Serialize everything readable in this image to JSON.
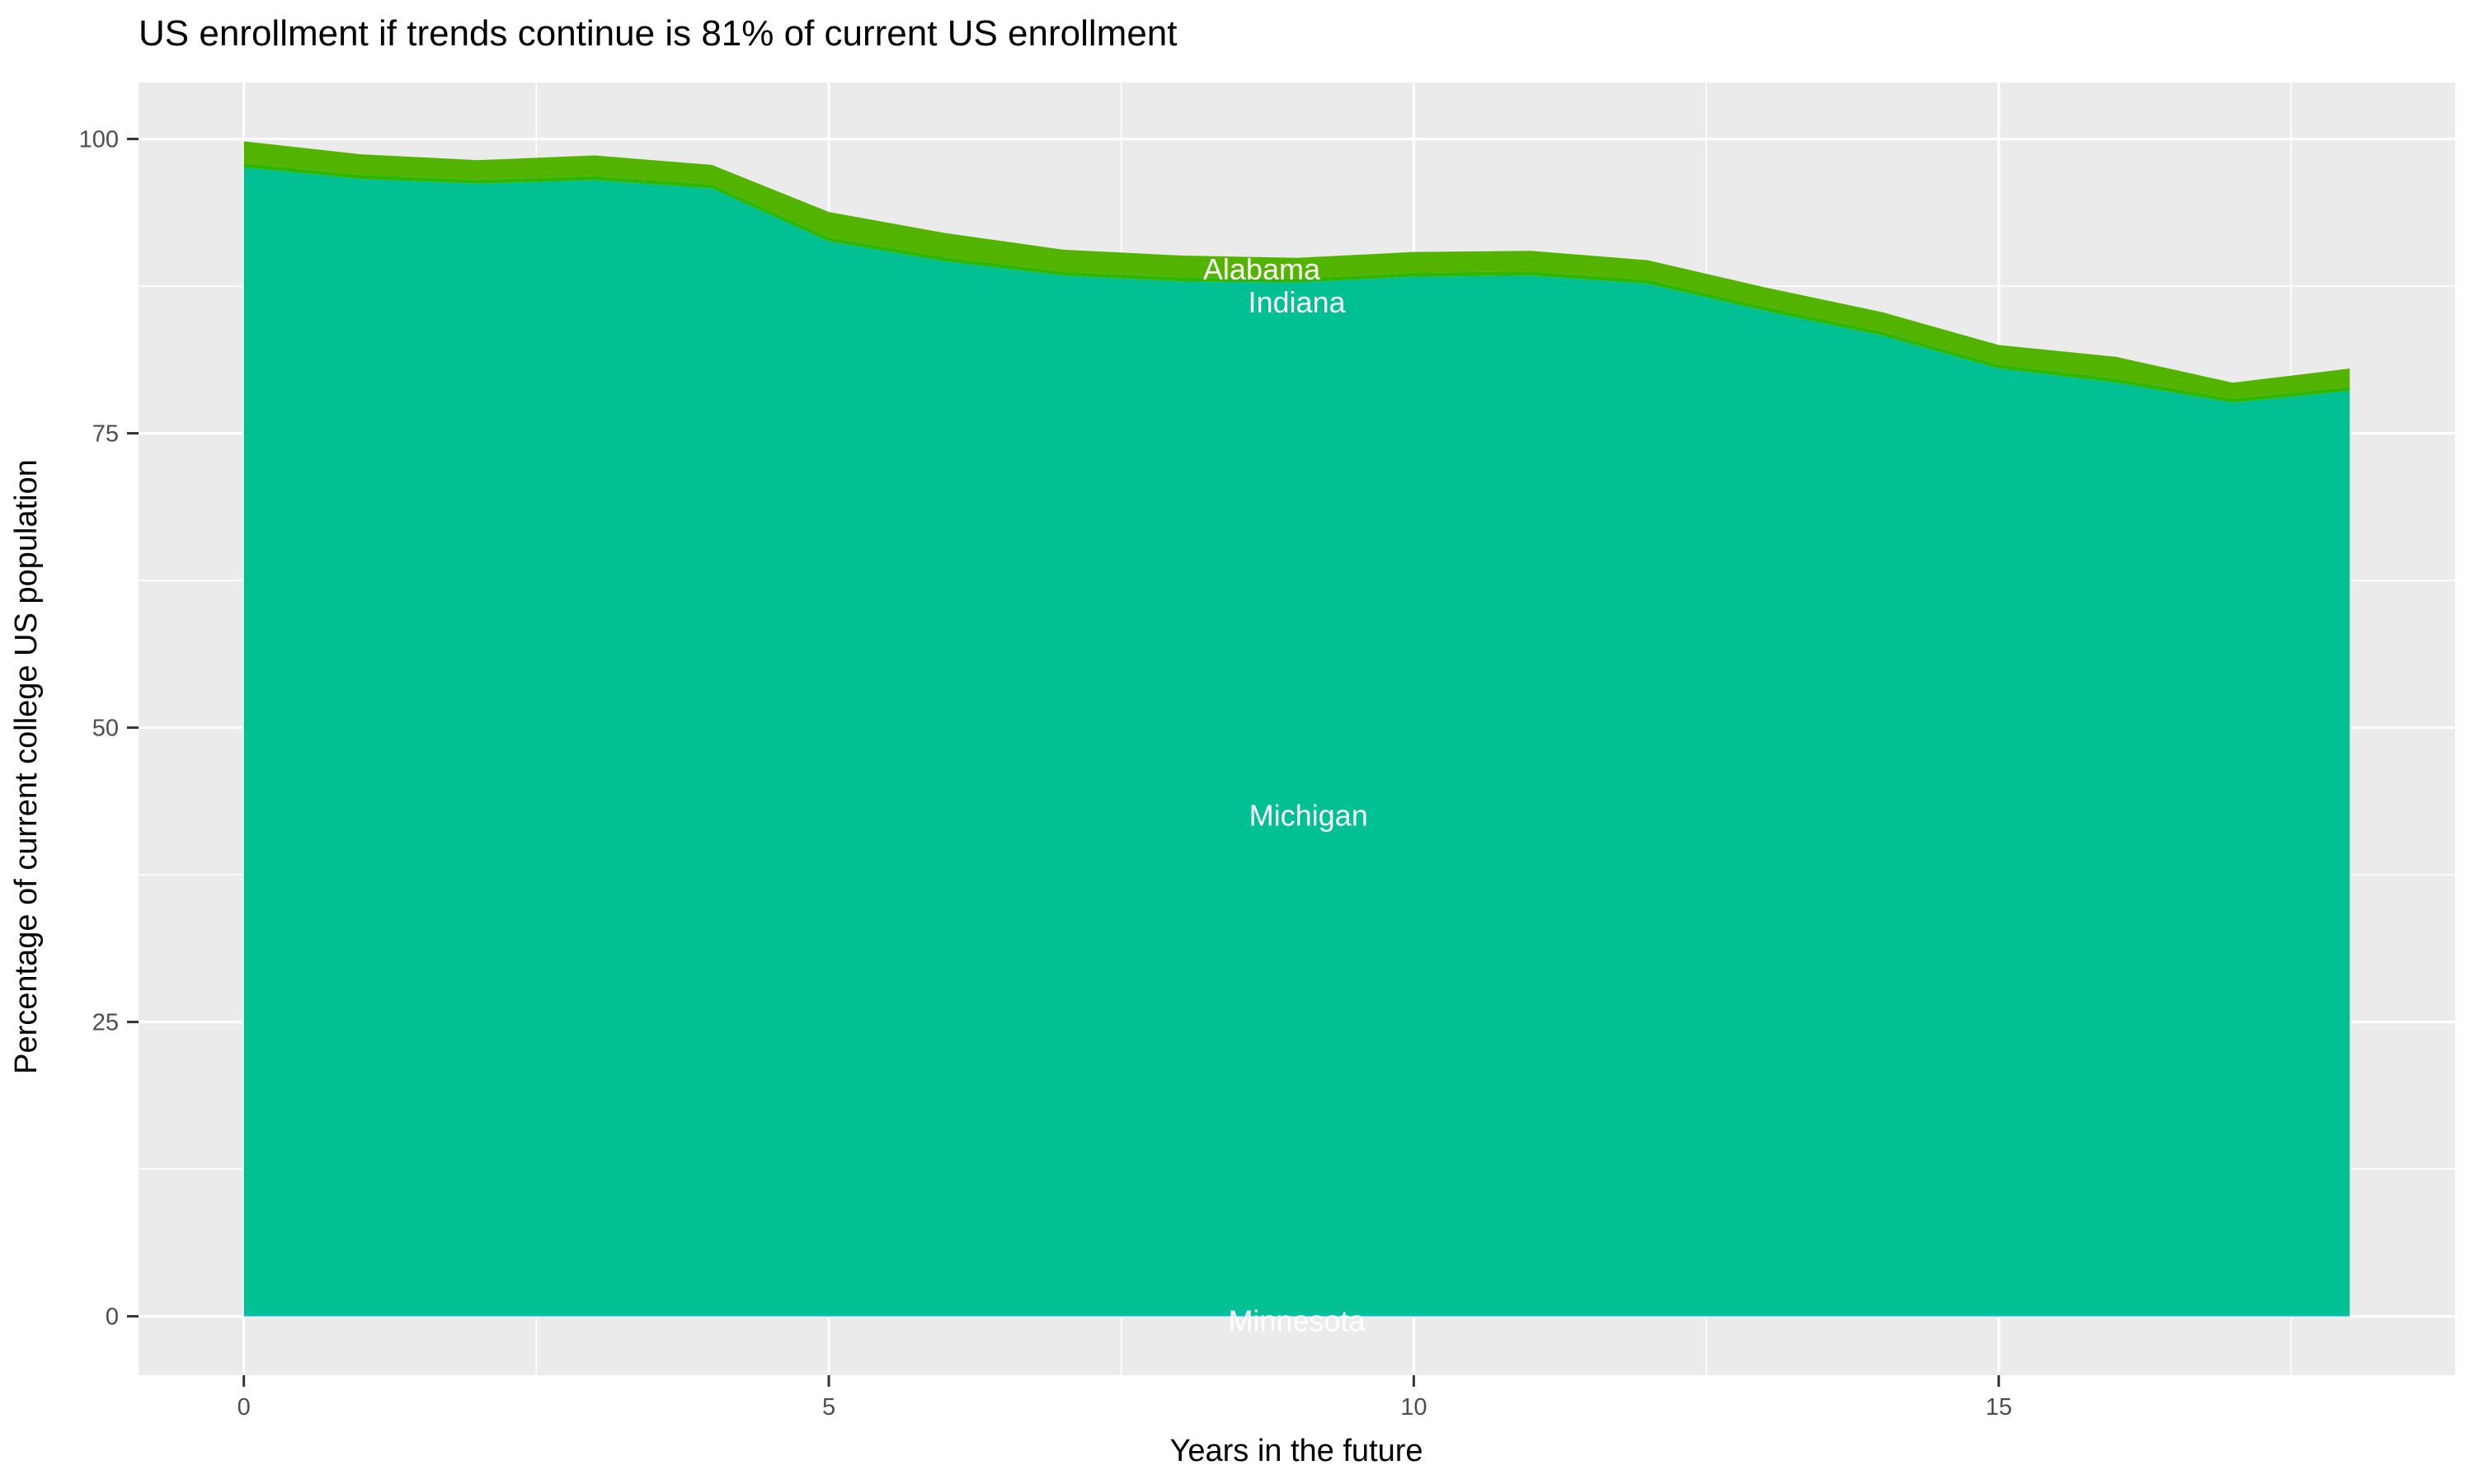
{
  "title": "US enrollment if trends continue is 81% of current US enrollment",
  "chart_data": {
    "type": "area",
    "stacked": true,
    "title": "US enrollment if trends continue is 81% of current US enrollment",
    "xlabel": "Years in the future",
    "ylabel": "Percentage of current college US population",
    "x": [
      0,
      1,
      2,
      3,
      4,
      5,
      6,
      7,
      8,
      9,
      10,
      11,
      12,
      13,
      14,
      15,
      16,
      17,
      18
    ],
    "series": [
      {
        "name": "Minnesota",
        "color": "#00BFC4",
        "values": [
          0.15,
          0.15,
          0.15,
          0.15,
          0.15,
          0.15,
          0.15,
          0.15,
          0.15,
          0.15,
          0.15,
          0.15,
          0.15,
          0.15,
          0.15,
          0.15,
          0.15,
          0.15,
          0.15
        ]
      },
      {
        "name": "Michigan",
        "color": "#00C094",
        "values": [
          97.45,
          96.45,
          96.05,
          96.35,
          95.65,
          91.15,
          89.45,
          88.25,
          87.75,
          87.65,
          88.15,
          88.25,
          87.55,
          85.25,
          83.15,
          80.35,
          79.15,
          77.45,
          78.45
        ]
      },
      {
        "name": "Indiana",
        "color": "#2FB600",
        "values": [
          0.35,
          0.35,
          0.35,
          0.35,
          0.35,
          0.35,
          0.35,
          0.35,
          0.35,
          0.35,
          0.35,
          0.35,
          0.35,
          0.35,
          0.35,
          0.35,
          0.35,
          0.35,
          0.35
        ]
      },
      {
        "name": "Alabama",
        "color": "#53B400",
        "values": [
          1.85,
          1.75,
          1.65,
          1.75,
          1.65,
          2.15,
          2.05,
          1.85,
          1.85,
          1.75,
          1.75,
          1.75,
          1.65,
          1.65,
          1.65,
          1.65,
          1.85,
          1.35,
          1.55
        ]
      }
    ],
    "stack_totals": [
      99.8,
      98.7,
      98.2,
      98.6,
      97.8,
      93.8,
      92.0,
      90.6,
      90.1,
      89.9,
      90.4,
      90.5,
      89.7,
      87.4,
      85.3,
      82.5,
      81.5,
      79.3,
      80.5
    ],
    "labels": [
      {
        "text": "Alabama",
        "x": 8.7,
        "y": 88.9
      },
      {
        "text": "Indiana",
        "x": 9.0,
        "y": 86.1
      },
      {
        "text": "Michigan",
        "x": 9.1,
        "y": 42.5
      },
      {
        "text": "Minnesota",
        "x": 9.0,
        "y": -0.4
      }
    ],
    "x_ticks": [
      0,
      5,
      10,
      15
    ],
    "y_ticks": [
      0,
      25,
      50,
      75,
      100
    ],
    "x_minor_ticks": [
      2.5,
      7.5,
      12.5,
      17.5
    ],
    "y_minor_ticks": [
      12.5,
      37.5,
      62.5,
      87.5
    ],
    "xlim": [
      -0.9,
      18.9
    ],
    "ylim": [
      -5,
      104.8
    ],
    "grid": true,
    "legend": "none",
    "panel_bg": "#EBEBEB",
    "grid_color": "#FFFFFF",
    "tick_color": "#333333",
    "tick_label_color": "#4D4D4D"
  }
}
